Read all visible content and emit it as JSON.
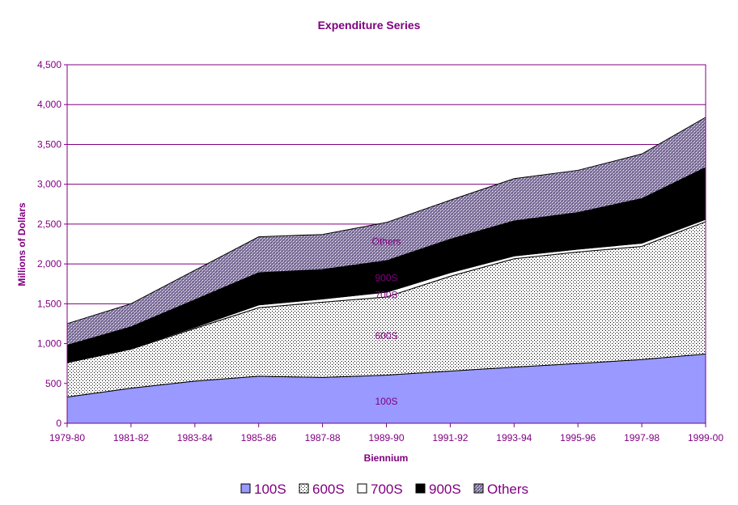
{
  "chart_data": {
    "type": "area",
    "stacked": true,
    "title": "Expenditure Series",
    "xlabel": "Biennium",
    "ylabel": "Millions of Dollars",
    "ylim": [
      0,
      4500
    ],
    "y_ticks": [
      "0",
      "500",
      "1,000",
      "1,500",
      "2,000",
      "2,500",
      "3,000",
      "3,500",
      "4,000",
      "4,500"
    ],
    "grid": true,
    "legend_position": "bottom",
    "categories": [
      "1979-80",
      "1981-82",
      "1983-84",
      "1985-86",
      "1987-88",
      "1989-90",
      "1991-92",
      "1993-94",
      "1995-96",
      "1997-98",
      "1999-00"
    ],
    "series": [
      {
        "name": "100S",
        "label": "100S",
        "color": "#9999ff",
        "pattern": "solid",
        "values": [
          330,
          440,
          530,
          590,
          575,
          605,
          655,
          705,
          750,
          800,
          870
        ]
      },
      {
        "name": "600S",
        "label": "600S",
        "color": "#ffffff",
        "pattern": "dots",
        "values": [
          430,
          490,
          660,
          860,
          945,
          980,
          1190,
          1360,
          1400,
          1420,
          1660
        ]
      },
      {
        "name": "700S",
        "label": "700S",
        "color": "#ffffff",
        "pattern": "solid",
        "values": [
          0,
          10,
          15,
          35,
          40,
          60,
          45,
          35,
          35,
          40,
          30
        ]
      },
      {
        "name": "900S",
        "label": "900S",
        "color": "#000000",
        "pattern": "solid",
        "values": [
          220,
          270,
          345,
          405,
          370,
          395,
          420,
          440,
          460,
          560,
          650
        ]
      },
      {
        "name": "Others",
        "label": "Others",
        "color": "#993366",
        "pattern": "crosshatch",
        "values": [
          270,
          290,
          370,
          450,
          440,
          480,
          490,
          530,
          530,
          560,
          630
        ]
      }
    ]
  }
}
